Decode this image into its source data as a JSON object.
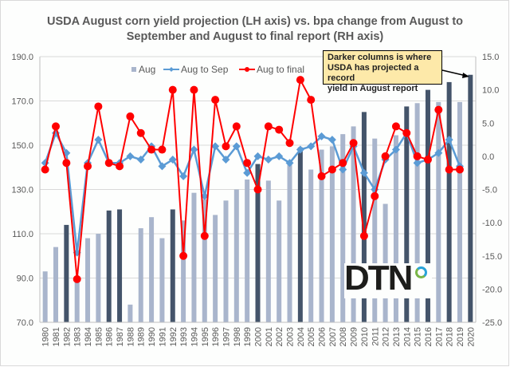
{
  "chart_data": {
    "type": "bar",
    "title": "USDA August corn yield projection (LH axis) vs. bpa change from August to September and August to final report (RH axis)",
    "title_lines": [
      "USDA August corn yield projection (LH axis) vs. bpa change from August to",
      "September and August to final report (RH axis)"
    ],
    "xlabel": "",
    "ylabel_left": "",
    "ylabel_right": "",
    "ylim_left": [
      70,
      190
    ],
    "ylim_right": [
      -25,
      15
    ],
    "left_ticks": [
      "190.0",
      "170.0",
      "150.0",
      "130.0",
      "110.0",
      "90.0",
      "70.0"
    ],
    "right_ticks": [
      "15.0",
      "10.0",
      "5.0",
      "0.0",
      "-5.0",
      "-10.0",
      "-15.0",
      "-20.0",
      "-25.0"
    ],
    "grid": true,
    "legend_position": "top",
    "categories": [
      "1980",
      "1981",
      "1982",
      "1983",
      "1984",
      "1985",
      "1986",
      "1987",
      "1988",
      "1989",
      "1990",
      "1991",
      "1992",
      "1993",
      "1994",
      "1995",
      "1996",
      "1997",
      "1998",
      "1999",
      "2000",
      "2001",
      "2002",
      "2003",
      "2004",
      "2005",
      "2006",
      "2007",
      "2008",
      "2009",
      "2010",
      "2011",
      "2012",
      "2013",
      "2014",
      "2015",
      "2016",
      "2017",
      "2018",
      "2019",
      "2020"
    ],
    "series": [
      {
        "name": "Aug",
        "type": "bar",
        "axis": "left",
        "color": "#a9b5cc",
        "record_color": "#44546a",
        "values": [
          93.0,
          104.0,
          114.0,
          89.0,
          108.0,
          110.0,
          120.5,
          121.0,
          78.0,
          112.5,
          117.5,
          108.0,
          121.0,
          116.0,
          128.5,
          125.5,
          118.5,
          125.0,
          130.0,
          134.5,
          141.5,
          134.0,
          125.0,
          143.0,
          149.0,
          139.0,
          148.0,
          149.5,
          155.0,
          158.5,
          165.0,
          153.0,
          123.5,
          154.5,
          167.5,
          169.0,
          175.0,
          169.5,
          178.5,
          169.5,
          181.8
        ],
        "record": [
          false,
          false,
          true,
          false,
          false,
          false,
          true,
          true,
          false,
          false,
          false,
          false,
          true,
          false,
          false,
          false,
          false,
          false,
          false,
          false,
          true,
          false,
          false,
          false,
          true,
          false,
          false,
          false,
          false,
          false,
          true,
          false,
          false,
          false,
          true,
          false,
          true,
          false,
          true,
          false,
          true
        ]
      },
      {
        "name": "Aug to Sep",
        "type": "line",
        "axis": "right",
        "color": "#5b9bd5",
        "marker": "diamond",
        "values": [
          -1.0,
          3.5,
          0.5,
          -14.5,
          -1.0,
          2.5,
          -1.0,
          -1.0,
          0.0,
          -0.5,
          1.5,
          -1.5,
          -0.5,
          -3.0,
          1.0,
          -6.0,
          1.5,
          -0.5,
          1.5,
          -2.5,
          0.0,
          -0.5,
          0.0,
          -1.0,
          1.0,
          1.5,
          3.0,
          2.5,
          -2.0,
          1.5,
          -2.5,
          -5.0,
          -0.5,
          1.0,
          3.5,
          -1.0,
          -0.5,
          0.5,
          2.5,
          -1.5,
          null
        ]
      },
      {
        "name": "Aug to final",
        "type": "line",
        "axis": "right",
        "color": "#ff0000",
        "marker": "circle",
        "values": [
          -2.0,
          4.5,
          -1.0,
          -18.5,
          -1.5,
          7.5,
          -1.0,
          -1.5,
          6.0,
          3.5,
          1.0,
          1.0,
          10.0,
          -15.0,
          10.0,
          -12.0,
          8.5,
          1.5,
          4.5,
          -1.0,
          -5.0,
          4.5,
          4.0,
          2.0,
          11.5,
          8.5,
          -3.0,
          -2.0,
          -1.0,
          2.0,
          -12.0,
          -6.0,
          0.0,
          4.5,
          3.5,
          0.0,
          -0.5,
          7.0,
          -2.0,
          -2.0,
          null
        ]
      }
    ],
    "annotation": "Darker columns is where USDA has projected a record yield in August report"
  },
  "legend": {
    "aug": "Aug",
    "aug_to_sep": "Aug to Sep",
    "aug_to_final": "Aug to final"
  },
  "callout": {
    "line1": "Darker columns is where",
    "line2": "USDA has projected a record",
    "line3": "yield in August report"
  },
  "logo": {
    "text": "DTN"
  }
}
